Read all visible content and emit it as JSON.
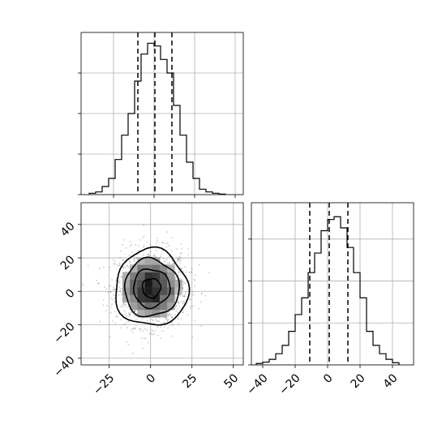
{
  "chart_data": {
    "type": "corner",
    "title": "",
    "grid": true,
    "panels": {
      "hist_x": {
        "type": "histogram",
        "bin_edges": [
          -40,
          -36,
          -32,
          -28,
          -24,
          -20,
          -16,
          -12,
          -8,
          -4,
          0,
          4,
          8,
          12,
          16,
          20,
          24,
          28,
          32,
          36,
          40,
          44
        ],
        "counts": [
          0.5,
          1,
          3,
          6,
          13,
          22,
          30,
          42,
          52,
          56,
          55,
          50,
          45,
          33,
          22,
          12,
          6,
          2,
          1,
          0.5,
          0.2
        ],
        "quantiles": [
          -10,
          0.5,
          11
        ],
        "xlim": [
          -45,
          55
        ],
        "ylim": [
          0,
          60
        ],
        "y_ticks": [
          0,
          15,
          30,
          45
        ]
      },
      "hist_y": {
        "type": "histogram",
        "bin_edges": [
          -44,
          -40,
          -36,
          -32,
          -28,
          -24,
          -20,
          -16,
          -12,
          -8,
          -4,
          0,
          4,
          8,
          12,
          16,
          20,
          24,
          28,
          32,
          36,
          40,
          44
        ],
        "counts": [
          0.5,
          1,
          2,
          4,
          7,
          12,
          18,
          24,
          33,
          40,
          48,
          52,
          53,
          49,
          42,
          33,
          24,
          12,
          7,
          4,
          2,
          0.8
        ],
        "quantiles": [
          -11,
          1,
          12.5
        ],
        "xlim": [
          -47,
          53
        ],
        "x_ticks": [
          -40,
          -20,
          0,
          20,
          40
        ],
        "x_tick_labels": [
          "−40",
          "−20",
          "0",
          "20",
          "40"
        ],
        "ylim": [
          0,
          58
        ],
        "y_ticks": [
          0,
          15,
          30,
          45
        ]
      },
      "scatter_2d": {
        "type": "2d-density",
        "xlim": [
          -42,
          56
        ],
        "ylim": [
          -44,
          53
        ],
        "x_ticks": [
          -25,
          0,
          25,
          50
        ],
        "x_tick_labels": [
          "−25",
          "0",
          "25",
          "50"
        ],
        "y_ticks": [
          -40,
          -20,
          0,
          20,
          40
        ],
        "y_tick_labels": [
          "−40",
          "−20",
          "0",
          "20",
          "40"
        ],
        "center": [
          0.5,
          2
        ],
        "sigma": [
          11,
          11.5
        ],
        "contour_radii_sigma": [
          0.5,
          1.0,
          1.5,
          2.0
        ]
      }
    }
  }
}
